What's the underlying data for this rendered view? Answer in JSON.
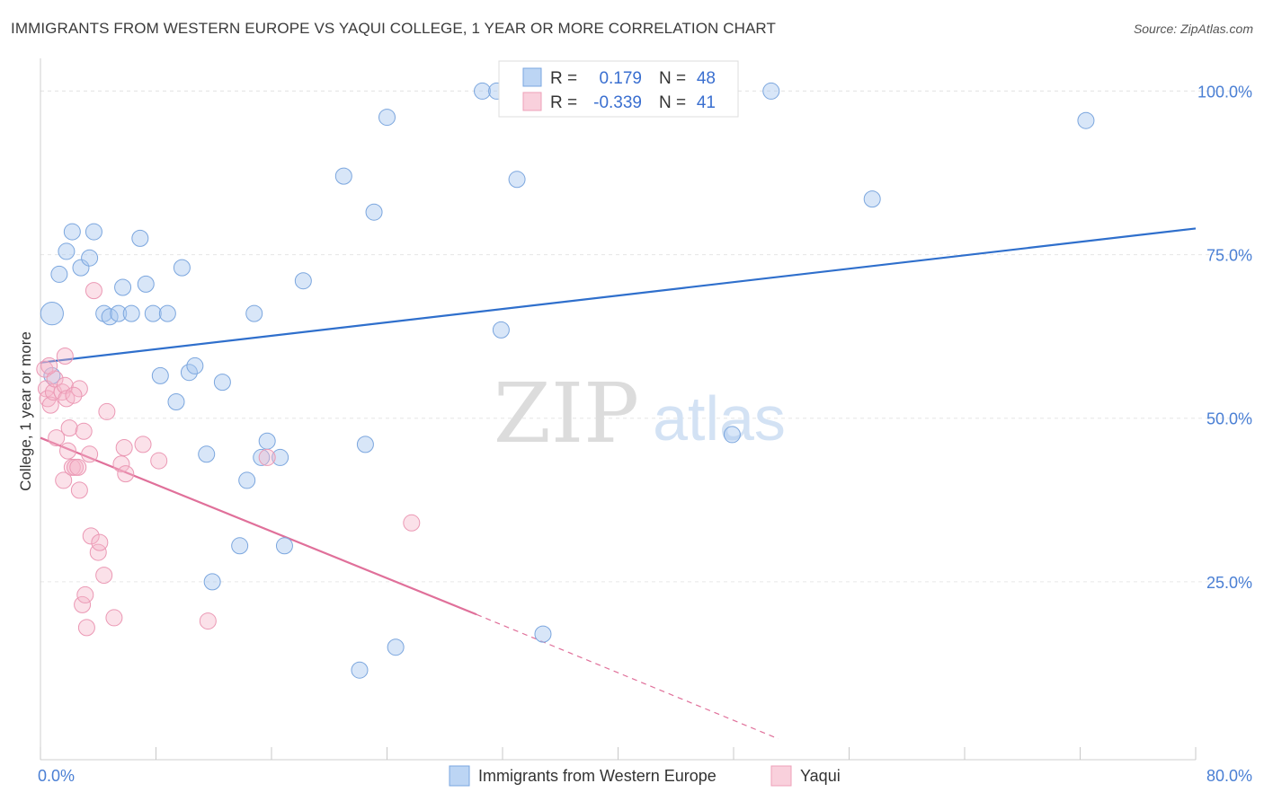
{
  "title": "IMMIGRANTS FROM WESTERN EUROPE VS YAQUI COLLEGE, 1 YEAR OR MORE CORRELATION CHART",
  "source": "Source: ZipAtlas.com",
  "watermark": {
    "zip": "ZIP",
    "atlas": "atlas"
  },
  "colors": {
    "blue": "#a9c8ef",
    "blue_line": "#2f6fcc",
    "pink": "#f4b4c8",
    "pink_line": "#e0709a",
    "axis_text": "#4a7fd4"
  },
  "legend_box": {
    "rows": [
      {
        "r_label": "R =",
        "r_value": "0.179",
        "n_label": "N =",
        "n_value": "48"
      },
      {
        "r_label": "R =",
        "r_value": "-0.339",
        "n_label": "N =",
        "n_value": "41"
      }
    ]
  },
  "chart_data": {
    "type": "scatter",
    "title": "IMMIGRANTS FROM WESTERN EUROPE VS YAQUI COLLEGE, 1 YEAR OR MORE CORRELATION CHART",
    "xlabel": "",
    "ylabel": "College, 1 year or more",
    "xlim": [
      0,
      80
    ],
    "ylim": [
      0,
      105
    ],
    "x_tick_labels": [
      "0.0%",
      "80.0%"
    ],
    "y_ticks": [
      25,
      50,
      75,
      100
    ],
    "y_tick_labels": [
      "25.0%",
      "50.0%",
      "75.0%",
      "100.0%"
    ],
    "series": [
      {
        "name": "Immigrants from Western Europe",
        "color": "#a9c8ef",
        "R": 0.179,
        "N": 48,
        "trend": {
          "x": [
            0,
            80
          ],
          "y": [
            58.5,
            79
          ]
        },
        "points": [
          {
            "x": 0.8,
            "y": 66,
            "s": 1.4
          },
          {
            "x": 0.8,
            "y": 56.5,
            "s": 1
          },
          {
            "x": 1.3,
            "y": 72
          },
          {
            "x": 1.8,
            "y": 75.5
          },
          {
            "x": 2.2,
            "y": 78.5
          },
          {
            "x": 2.8,
            "y": 73
          },
          {
            "x": 3.4,
            "y": 74.5
          },
          {
            "x": 3.7,
            "y": 78.5
          },
          {
            "x": 4.4,
            "y": 66
          },
          {
            "x": 4.8,
            "y": 65.5
          },
          {
            "x": 5.4,
            "y": 66
          },
          {
            "x": 5.7,
            "y": 70
          },
          {
            "x": 6.3,
            "y": 66
          },
          {
            "x": 6.9,
            "y": 77.5
          },
          {
            "x": 7.3,
            "y": 70.5
          },
          {
            "x": 7.8,
            "y": 66
          },
          {
            "x": 8.3,
            "y": 56.5
          },
          {
            "x": 8.8,
            "y": 66
          },
          {
            "x": 9.4,
            "y": 52.5
          },
          {
            "x": 9.8,
            "y": 73
          },
          {
            "x": 10.3,
            "y": 57
          },
          {
            "x": 10.7,
            "y": 58
          },
          {
            "x": 11.5,
            "y": 44.5
          },
          {
            "x": 11.9,
            "y": 25
          },
          {
            "x": 12.6,
            "y": 55.5
          },
          {
            "x": 13.8,
            "y": 30.5
          },
          {
            "x": 14.3,
            "y": 40.5
          },
          {
            "x": 14.8,
            "y": 66
          },
          {
            "x": 15.3,
            "y": 44
          },
          {
            "x": 15.7,
            "y": 46.5
          },
          {
            "x": 16.6,
            "y": 44
          },
          {
            "x": 16.9,
            "y": 30.5
          },
          {
            "x": 18.2,
            "y": 71
          },
          {
            "x": 21.0,
            "y": 87
          },
          {
            "x": 22.1,
            "y": 11.5
          },
          {
            "x": 22.5,
            "y": 46
          },
          {
            "x": 23.1,
            "y": 81.5
          },
          {
            "x": 24.0,
            "y": 96
          },
          {
            "x": 24.6,
            "y": 15
          },
          {
            "x": 30.6,
            "y": 100
          },
          {
            "x": 31.6,
            "y": 100
          },
          {
            "x": 31.9,
            "y": 63.5
          },
          {
            "x": 33.0,
            "y": 86.5
          },
          {
            "x": 34.8,
            "y": 17
          },
          {
            "x": 47.9,
            "y": 47.5
          },
          {
            "x": 50.6,
            "y": 100
          },
          {
            "x": 57.6,
            "y": 83.5
          },
          {
            "x": 72.4,
            "y": 95.5
          }
        ]
      },
      {
        "name": "Yaqui",
        "color": "#f4b4c8",
        "R": -0.339,
        "N": 41,
        "trend": {
          "x": [
            0,
            30.2
          ],
          "y": [
            47,
            20
          ],
          "dashed_to": {
            "x": 51.1,
            "y": 1
          }
        },
        "points": [
          {
            "x": 0.3,
            "y": 57.5
          },
          {
            "x": 0.4,
            "y": 54.5
          },
          {
            "x": 0.5,
            "y": 53
          },
          {
            "x": 0.7,
            "y": 52
          },
          {
            "x": 0.9,
            "y": 54
          },
          {
            "x": 1.0,
            "y": 56
          },
          {
            "x": 1.1,
            "y": 47
          },
          {
            "x": 1.5,
            "y": 54
          },
          {
            "x": 1.6,
            "y": 40.5
          },
          {
            "x": 1.7,
            "y": 55
          },
          {
            "x": 1.8,
            "y": 53
          },
          {
            "x": 1.7,
            "y": 59.5
          },
          {
            "x": 2.0,
            "y": 48.5
          },
          {
            "x": 1.9,
            "y": 45
          },
          {
            "x": 2.2,
            "y": 42.5
          },
          {
            "x": 2.4,
            "y": 42.5
          },
          {
            "x": 2.6,
            "y": 42.5
          },
          {
            "x": 2.7,
            "y": 39
          },
          {
            "x": 2.7,
            "y": 54.5
          },
          {
            "x": 2.9,
            "y": 21.5
          },
          {
            "x": 3.0,
            "y": 48
          },
          {
            "x": 3.1,
            "y": 23
          },
          {
            "x": 3.2,
            "y": 18
          },
          {
            "x": 3.4,
            "y": 44.5
          },
          {
            "x": 3.5,
            "y": 32
          },
          {
            "x": 3.7,
            "y": 69.5
          },
          {
            "x": 4.0,
            "y": 29.5
          },
          {
            "x": 4.1,
            "y": 31
          },
          {
            "x": 4.4,
            "y": 26
          },
          {
            "x": 4.6,
            "y": 51
          },
          {
            "x": 5.1,
            "y": 19.5
          },
          {
            "x": 5.6,
            "y": 43
          },
          {
            "x": 5.8,
            "y": 45.5
          },
          {
            "x": 5.9,
            "y": 41.5
          },
          {
            "x": 7.1,
            "y": 46
          },
          {
            "x": 8.2,
            "y": 43.5
          },
          {
            "x": 11.6,
            "y": 19
          },
          {
            "x": 15.7,
            "y": 44
          },
          {
            "x": 25.7,
            "y": 34
          },
          {
            "x": 2.3,
            "y": 53.5
          },
          {
            "x": 0.6,
            "y": 58
          }
        ]
      }
    ],
    "legend": [
      "Immigrants from Western Europe",
      "Yaqui"
    ],
    "legend_position": "bottom-center",
    "grid": true
  }
}
